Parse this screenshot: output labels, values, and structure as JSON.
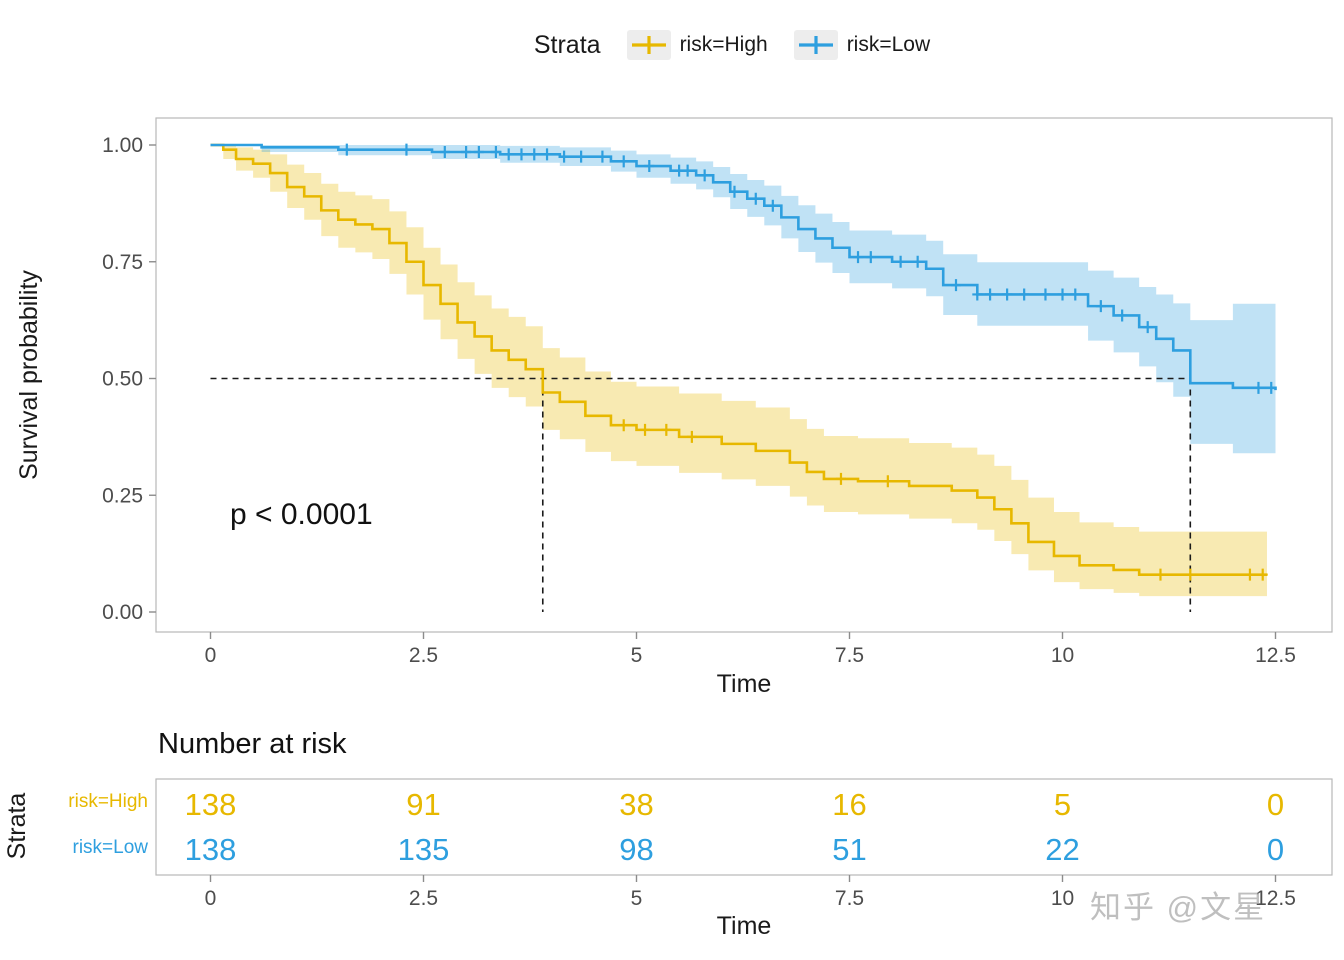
{
  "watermark": "知乎 @文星",
  "chart_data": {
    "type": "line",
    "subtype": "kaplan-meier-survival",
    "title": "",
    "xlabel": "Time",
    "ylabel": "Survival probability",
    "legend_title": "Strata",
    "legend_position": "top",
    "pvalue_text": "p < 0.0001",
    "xlim": [
      0,
      12.5
    ],
    "ylim": [
      0,
      1
    ],
    "grid": false,
    "median_line_level": 0.5,
    "x_ticks": [
      {
        "value": 0,
        "label": "0"
      },
      {
        "value": 2.5,
        "label": "2.5"
      },
      {
        "value": 5,
        "label": "5"
      },
      {
        "value": 7.5,
        "label": "7.5"
      },
      {
        "value": 10,
        "label": "10"
      },
      {
        "value": 12.5,
        "label": "12.5"
      }
    ],
    "y_ticks": [
      {
        "value": 0,
        "label": "0.00"
      },
      {
        "value": 0.25,
        "label": "0.25"
      },
      {
        "value": 0.5,
        "label": "0.50"
      },
      {
        "value": 0.75,
        "label": "0.75"
      },
      {
        "value": 1,
        "label": "1.00"
      }
    ],
    "series": [
      {
        "name": "risk=High",
        "color": "#E7B800",
        "median_survival_time": 3.9,
        "points": [
          [
            0,
            1,
            1,
            1
          ],
          [
            0.15,
            0.99,
            0.97,
            1
          ],
          [
            0.3,
            0.97,
            0.945,
            0.995
          ],
          [
            0.5,
            0.96,
            0.93,
            0.99
          ],
          [
            0.7,
            0.94,
            0.9,
            0.98
          ],
          [
            0.9,
            0.91,
            0.865,
            0.958
          ],
          [
            1.1,
            0.89,
            0.84,
            0.94
          ],
          [
            1.3,
            0.86,
            0.805,
            0.917
          ],
          [
            1.5,
            0.84,
            0.78,
            0.9
          ],
          [
            1.7,
            0.83,
            0.77,
            0.892
          ],
          [
            1.9,
            0.82,
            0.756,
            0.884
          ],
          [
            2.1,
            0.79,
            0.724,
            0.858
          ],
          [
            2.3,
            0.75,
            0.68,
            0.824
          ],
          [
            2.5,
            0.7,
            0.626,
            0.78
          ],
          [
            2.7,
            0.66,
            0.584,
            0.744
          ],
          [
            2.9,
            0.62,
            0.542,
            0.706
          ],
          [
            3.1,
            0.59,
            0.51,
            0.678
          ],
          [
            3.3,
            0.56,
            0.48,
            0.65
          ],
          [
            3.5,
            0.54,
            0.46,
            0.632
          ],
          [
            3.7,
            0.52,
            0.44,
            0.612
          ],
          [
            3.9,
            0.47,
            0.39,
            0.565
          ],
          [
            4.1,
            0.45,
            0.37,
            0.545
          ],
          [
            4.4,
            0.42,
            0.343,
            0.515
          ],
          [
            4.7,
            0.4,
            0.323,
            0.493
          ],
          [
            5,
            0.39,
            0.313,
            0.483
          ],
          [
            5.5,
            0.375,
            0.298,
            0.468
          ],
          [
            6,
            0.36,
            0.284,
            0.452
          ],
          [
            6.4,
            0.345,
            0.27,
            0.438
          ],
          [
            6.8,
            0.32,
            0.247,
            0.413
          ],
          [
            7,
            0.3,
            0.228,
            0.392
          ],
          [
            7.2,
            0.285,
            0.214,
            0.377
          ],
          [
            7.6,
            0.28,
            0.209,
            0.372
          ],
          [
            8.2,
            0.27,
            0.2,
            0.362
          ],
          [
            8.7,
            0.26,
            0.19,
            0.352
          ],
          [
            9,
            0.245,
            0.176,
            0.337
          ],
          [
            9.2,
            0.22,
            0.152,
            0.313
          ],
          [
            9.4,
            0.19,
            0.124,
            0.283
          ],
          [
            9.6,
            0.15,
            0.089,
            0.245
          ],
          [
            9.9,
            0.12,
            0.064,
            0.214
          ],
          [
            10.2,
            0.1,
            0.049,
            0.192
          ],
          [
            10.6,
            0.09,
            0.041,
            0.182
          ],
          [
            10.9,
            0.08,
            0.034,
            0.172
          ],
          [
            12.4,
            0.08,
            0.034,
            0.172
          ]
        ],
        "censor_times": [
          4.85,
          5.1,
          5.35,
          5.65,
          7.4,
          7.95,
          11.15,
          11.5,
          12.2,
          12.35
        ]
      },
      {
        "name": "risk=Low",
        "color": "#2E9FDF",
        "median_survival_time": 11.5,
        "points": [
          [
            0,
            1,
            1,
            1
          ],
          [
            0.6,
            0.995,
            0.985,
            1
          ],
          [
            1.5,
            0.99,
            0.978,
            1
          ],
          [
            2.6,
            0.985,
            0.97,
            1
          ],
          [
            3.4,
            0.98,
            0.962,
            0.998
          ],
          [
            4.1,
            0.975,
            0.955,
            0.995
          ],
          [
            4.7,
            0.965,
            0.943,
            0.988
          ],
          [
            5,
            0.955,
            0.93,
            0.98
          ],
          [
            5.4,
            0.945,
            0.917,
            0.973
          ],
          [
            5.7,
            0.935,
            0.905,
            0.965
          ],
          [
            5.9,
            0.92,
            0.888,
            0.953
          ],
          [
            6.1,
            0.9,
            0.863,
            0.938
          ],
          [
            6.3,
            0.885,
            0.846,
            0.925
          ],
          [
            6.5,
            0.87,
            0.828,
            0.913
          ],
          [
            6.7,
            0.845,
            0.8,
            0.891
          ],
          [
            6.9,
            0.82,
            0.771,
            0.871
          ],
          [
            7.1,
            0.8,
            0.748,
            0.853
          ],
          [
            7.3,
            0.78,
            0.726,
            0.835
          ],
          [
            7.5,
            0.76,
            0.704,
            0.817
          ],
          [
            8,
            0.75,
            0.693,
            0.808
          ],
          [
            8.4,
            0.735,
            0.676,
            0.795
          ],
          [
            8.6,
            0.7,
            0.636,
            0.766
          ],
          [
            9,
            0.68,
            0.613,
            0.749
          ],
          [
            10.3,
            0.655,
            0.581,
            0.731
          ],
          [
            10.6,
            0.635,
            0.556,
            0.716
          ],
          [
            10.9,
            0.61,
            0.526,
            0.696
          ],
          [
            11.1,
            0.585,
            0.492,
            0.68
          ],
          [
            11.3,
            0.56,
            0.461,
            0.661
          ],
          [
            11.5,
            0.49,
            0.36,
            0.625
          ],
          [
            12,
            0.48,
            0.34,
            0.66
          ],
          [
            12.5,
            0.475,
            0.315,
            0.71
          ]
        ],
        "censor_times": [
          1.6,
          2.3,
          2.75,
          3.0,
          3.15,
          3.35,
          3.5,
          3.65,
          3.8,
          3.95,
          4.15,
          4.35,
          4.6,
          4.85,
          5.15,
          5.5,
          5.6,
          5.8,
          6.15,
          6.4,
          6.6,
          7.6,
          7.75,
          8.1,
          8.3,
          8.75,
          9.0,
          9.15,
          9.35,
          9.55,
          9.8,
          10.0,
          10.15,
          10.45,
          10.7,
          11.0,
          12.3,
          12.45
        ]
      }
    ]
  },
  "risk_table": {
    "title": "Number at risk",
    "ylabel": "Strata",
    "xlabel": "Time",
    "x_ticks": [
      {
        "value": 0,
        "label": "0"
      },
      {
        "value": 2.5,
        "label": "2.5"
      },
      {
        "value": 5,
        "label": "5"
      },
      {
        "value": 7.5,
        "label": "7.5"
      },
      {
        "value": 10,
        "label": "10"
      },
      {
        "value": 12.5,
        "label": "12.5"
      }
    ],
    "rows": [
      {
        "name": "risk=High",
        "color": "#E7B800",
        "values": [
          138,
          91,
          38,
          16,
          5,
          0
        ]
      },
      {
        "name": "risk=Low",
        "color": "#2E9FDF",
        "values": [
          138,
          135,
          98,
          51,
          22,
          0
        ]
      }
    ]
  }
}
